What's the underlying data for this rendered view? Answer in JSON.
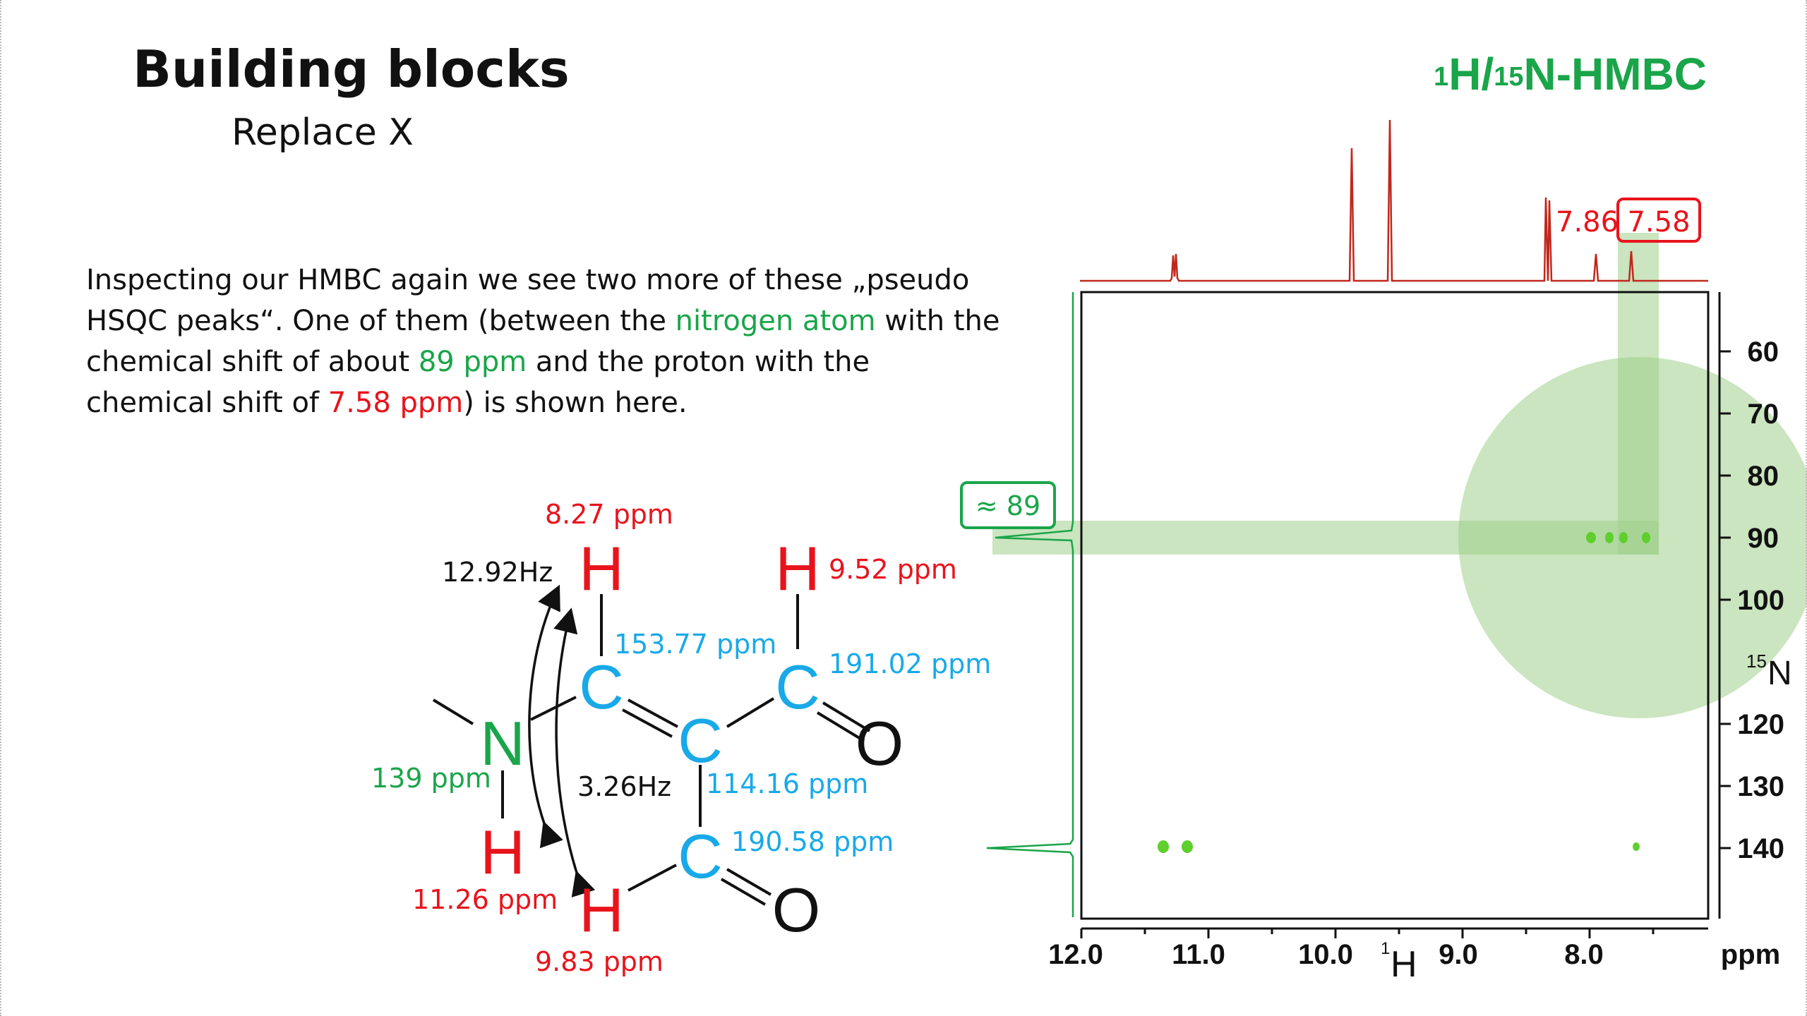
{
  "slide": {
    "title": "Building blocks",
    "subtitle": "Replace X",
    "experiment_label": "HMBC",
    "experiment_sup1": "1",
    "experiment_H": "H/",
    "experiment_sup2": "15",
    "experiment_N": "N-HMBC"
  },
  "paragraph": {
    "p1": "Inspecting our HMBC again we see two more of these „pseudo HSQC peaks“. One of them (between the ",
    "nitrogen_atom": "nitrogen atom",
    "p2": " with the chemical shift of about ",
    "n_shift": "89 ppm",
    "p3": " and the proton with the chemical shift of ",
    "h_shift": "7.58 ppm",
    "p4": ") is shown here."
  },
  "molecule": {
    "atoms": {
      "N": "N",
      "H_top_left": "H",
      "H_top_right": "H",
      "C_left": "C",
      "C_right": "C",
      "C_middle": "C",
      "C_bottom": "C",
      "O_right": "O",
      "O_bottom": "O",
      "H_nh": "H",
      "H_bottom": "H"
    },
    "labels": {
      "h_827": "8.27 ppm",
      "h_952": "9.52 ppm",
      "j_1292": "12.92Hz",
      "j_326": "3.26Hz",
      "c_15377": "153.77 ppm",
      "c_19102": "191.02 ppm",
      "n_139": "139 ppm",
      "c_11416": "114.16 ppm",
      "c_19058": "190.58 ppm",
      "h_1126": "11.26 ppm",
      "h_983": "9.83 ppm"
    }
  },
  "spectrum": {
    "x_axis_ticks": [
      "12.0",
      "11.0",
      "10.0",
      "9.0",
      "8.0"
    ],
    "x_axis_unit": "ppm",
    "x_axis_nucleus_sup": "1",
    "x_axis_nucleus": "H",
    "y_axis_ticks": [
      "60",
      "70",
      "80",
      "90",
      "100",
      "120",
      "130",
      "140"
    ],
    "y_axis_nucleus_sup": "15",
    "y_axis_nucleus": "N",
    "peak_labels": {
      "h_786": "7.86",
      "h_758": "7.58",
      "n_89": "≈ 89"
    },
    "colors": {
      "proton_trace": "#c0281c",
      "nitrogen_trace": "#1aa54a",
      "highlight": "#9fd08a",
      "peaks": "#5ecf2c",
      "carbon": "#19a9e8",
      "hydrogen": "#e8141c",
      "nitrogen": "#1aa54a"
    }
  }
}
